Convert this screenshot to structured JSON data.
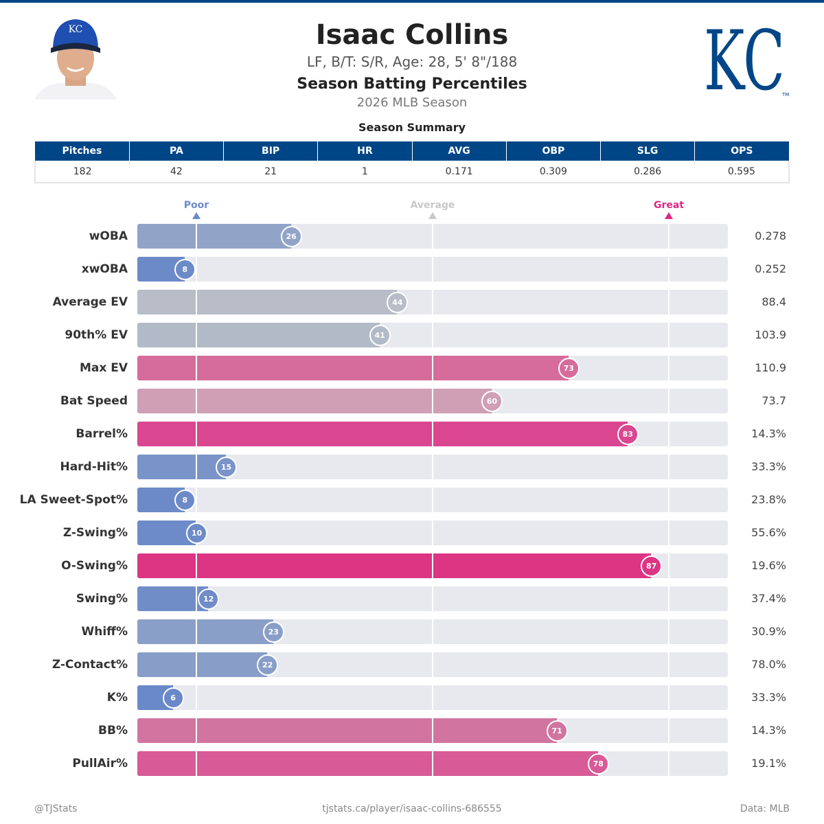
{
  "player": {
    "name": "Isaac Collins",
    "info": "LF, B/T: S/R, Age: 28, 5' 8\"/188",
    "title": "Season Batting Percentiles",
    "season": "2026 MLB Season",
    "team_logo_text": "KC"
  },
  "summary": {
    "title": "Season Summary",
    "headers": [
      "Pitches",
      "PA",
      "BIP",
      "HR",
      "AVG",
      "OBP",
      "SLG",
      "OPS"
    ],
    "values": [
      "182",
      "42",
      "21",
      "1",
      "0.171",
      "0.309",
      "0.286",
      "0.595"
    ]
  },
  "markers": {
    "poor": "Poor",
    "average": "Average",
    "great": "Great",
    "poor_color": "#6a8ac8",
    "average_color": "#c8c8c8",
    "great_color": "#dc2a82"
  },
  "metrics": [
    {
      "label": "wOBA",
      "pct": 26,
      "value": "0.278",
      "color": "#91a4c8"
    },
    {
      "label": "xwOBA",
      "pct": 8,
      "value": "0.252",
      "color": "#6c8ac8"
    },
    {
      "label": "Average EV",
      "pct": 44,
      "value": "88.4",
      "color": "#b8bdc8"
    },
    {
      "label": "90th% EV",
      "pct": 41,
      "value": "103.9",
      "color": "#b2bac8"
    },
    {
      "label": "Max EV",
      "pct": 73,
      "value": "110.9",
      "color": "#d66c9c"
    },
    {
      "label": "Bat Speed",
      "pct": 60,
      "value": "73.7",
      "color": "#cf9fb5"
    },
    {
      "label": "Barrel%",
      "pct": 83,
      "value": "14.3%",
      "color": "#da4690"
    },
    {
      "label": "Hard-Hit%",
      "pct": 15,
      "value": "33.3%",
      "color": "#7a93c8"
    },
    {
      "label": "LA Sweet-Spot%",
      "pct": 8,
      "value": "23.8%",
      "color": "#6c8ac8"
    },
    {
      "label": "Z-Swing%",
      "pct": 10,
      "value": "55.6%",
      "color": "#6d8bc8"
    },
    {
      "label": "O-Swing%",
      "pct": 87,
      "value": "19.6%",
      "color": "#dc3584"
    },
    {
      "label": "Swing%",
      "pct": 12,
      "value": "37.4%",
      "color": "#718dc8"
    },
    {
      "label": "Whiff%",
      "pct": 23,
      "value": "30.9%",
      "color": "#8a9fc8"
    },
    {
      "label": "Z-Contact%",
      "pct": 22,
      "value": "78.0%",
      "color": "#889ec8"
    },
    {
      "label": "K%",
      "pct": 6,
      "value": "33.3%",
      "color": "#6a89c8"
    },
    {
      "label": "BB%",
      "pct": 71,
      "value": "14.3%",
      "color": "#d274a0"
    },
    {
      "label": "PullAir%",
      "pct": 78,
      "value": "19.1%",
      "color": "#d85a96"
    }
  ],
  "footer": {
    "left": "@TJStats",
    "center": "tjstats.ca/player/isaac-collins-686555",
    "right": "Data: MLB"
  }
}
